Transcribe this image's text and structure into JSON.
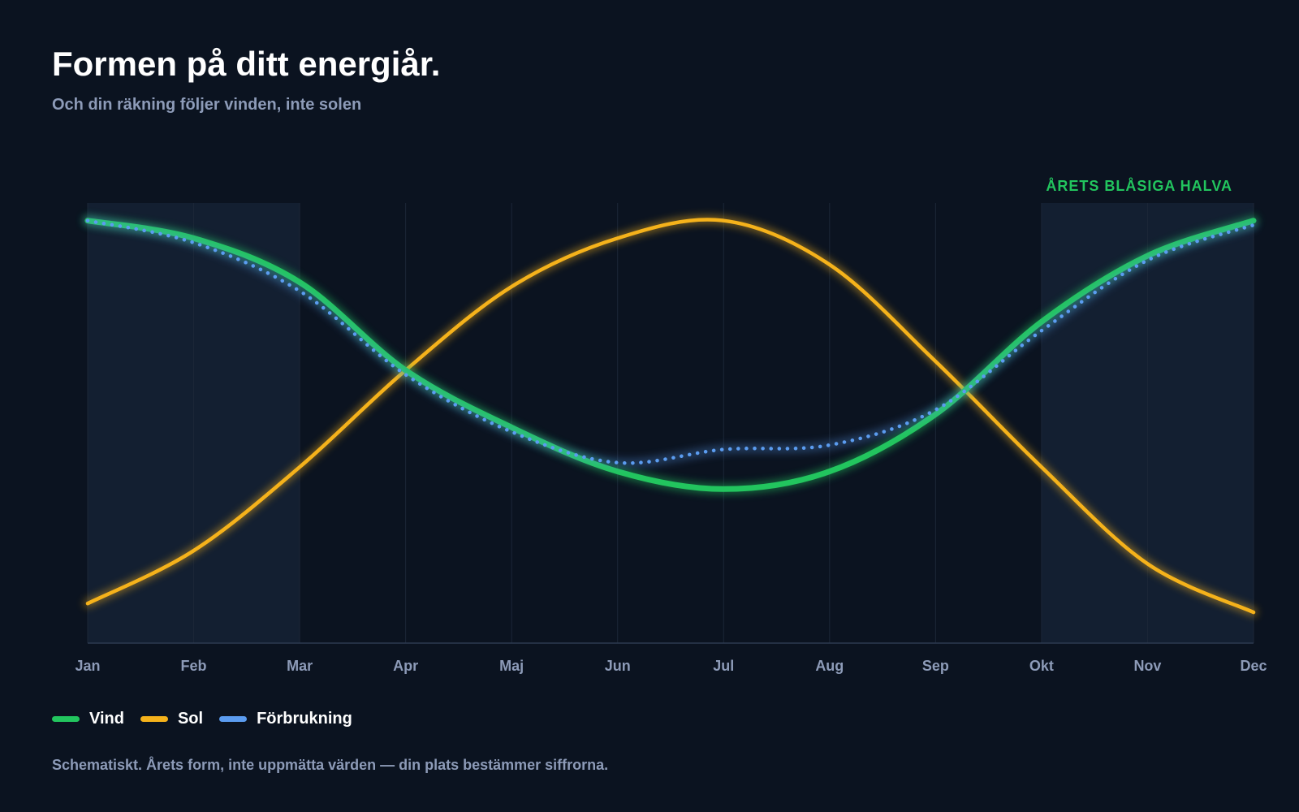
{
  "header": {
    "title": "Formen på ditt energiår.",
    "subtitle": "Och din räkning följer vinden, inte solen"
  },
  "footnote": "Schematiskt. Årets form, inte uppmätta värden — din plats bestämmer siffrorna.",
  "colors": {
    "background": "#0b1320",
    "band": "#131f31",
    "grid": "#1c2738",
    "axis": "#2c3a50",
    "vind": "#22c55e",
    "sol": "#f5b21b",
    "forbrukning": "#5b9cf0"
  },
  "chart_data": {
    "type": "line",
    "title": "Formen på ditt energiår.",
    "subtitle": "Och din räkning följer vinden, inte solen",
    "categories": [
      "Jan",
      "Feb",
      "Mar",
      "Apr",
      "Maj",
      "Jun",
      "Jul",
      "Aug",
      "Sep",
      "Okt",
      "Nov",
      "Dec"
    ],
    "ylim": [
      0,
      1
    ],
    "grid": "vertical",
    "legend_position": "bottom-left",
    "highlight": {
      "label": "ÅRETS BLÅSIGA HALVA",
      "ranges": [
        [
          "Jan",
          "Mar"
        ],
        [
          "Okt",
          "Dec"
        ]
      ]
    },
    "series": [
      {
        "name": "Vind",
        "style": "solid",
        "values": [
          0.96,
          0.92,
          0.82,
          0.62,
          0.49,
          0.39,
          0.35,
          0.39,
          0.52,
          0.73,
          0.88,
          0.96
        ]
      },
      {
        "name": "Sol",
        "style": "solid",
        "values": [
          0.09,
          0.21,
          0.4,
          0.62,
          0.81,
          0.92,
          0.96,
          0.86,
          0.64,
          0.4,
          0.18,
          0.07
        ]
      },
      {
        "name": "Förbrukning",
        "style": "dotted",
        "values": [
          0.96,
          0.91,
          0.8,
          0.61,
          0.48,
          0.41,
          0.44,
          0.45,
          0.53,
          0.71,
          0.87,
          0.95
        ]
      }
    ]
  }
}
